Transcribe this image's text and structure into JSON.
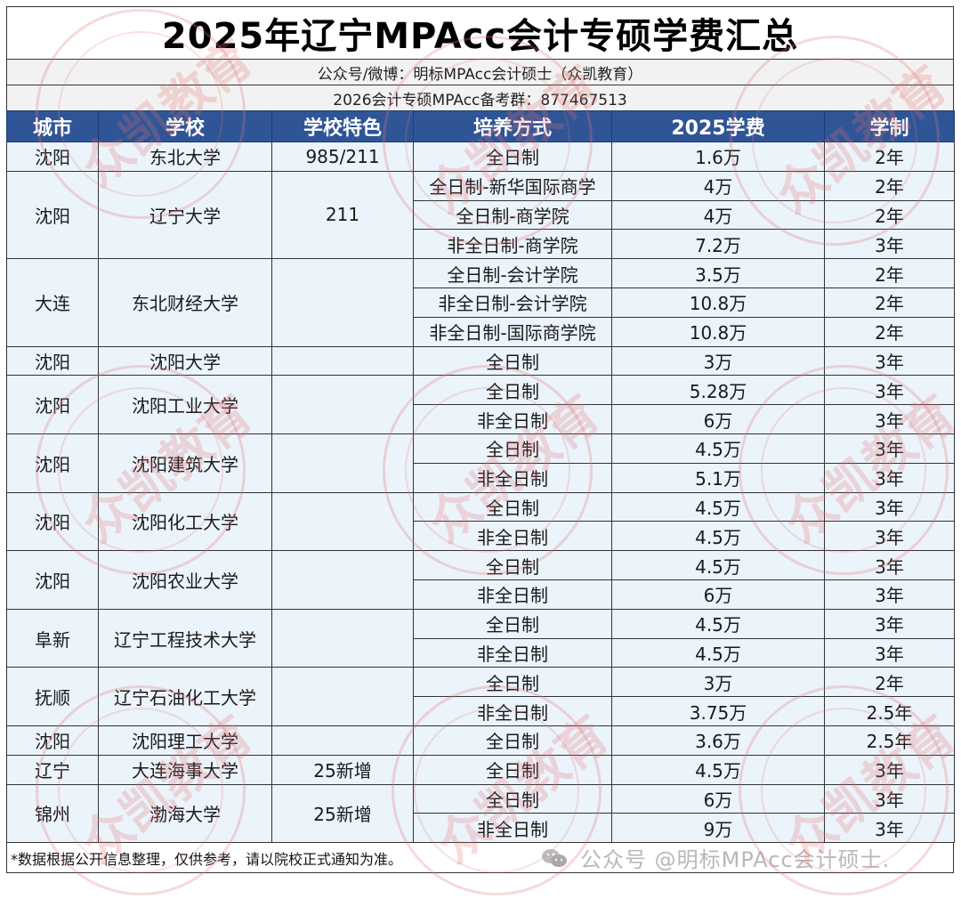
{
  "title": "2025年辽宁MPAcc会计专硕学费汇总",
  "subtitle_1": "公众号/微博：明标MPAcc会计硕士（众凯教育）",
  "subtitle_2": "2026会计专硕MPAcc备考群：877467513",
  "table": {
    "headers": [
      "城市",
      "学校",
      "学校特色",
      "培养方式",
      "2025学费",
      "学制"
    ],
    "schools": [
      {
        "city": "沈阳",
        "school": "东北大学",
        "feature": "985/211",
        "programs": [
          {
            "mode": "全日制",
            "fee": "1.6万",
            "duration": "2年"
          }
        ]
      },
      {
        "city": "沈阳",
        "school": "辽宁大学",
        "feature": "211",
        "programs": [
          {
            "mode": "全日制-新华国际商学",
            "fee": "4万",
            "duration": "2年"
          },
          {
            "mode": "全日制-商学院",
            "fee": "4万",
            "duration": "2年"
          },
          {
            "mode": "非全日制-商学院",
            "fee": "7.2万",
            "duration": "3年"
          }
        ]
      },
      {
        "city": "大连",
        "school": "东北财经大学",
        "feature": "",
        "programs": [
          {
            "mode": "全日制-会计学院",
            "fee": "3.5万",
            "duration": "2年"
          },
          {
            "mode": "非全日制-会计学院",
            "fee": "10.8万",
            "duration": "2年"
          },
          {
            "mode": "非全日制-国际商学院",
            "fee": "10.8万",
            "duration": "2年"
          }
        ]
      },
      {
        "city": "沈阳",
        "school": "沈阳大学",
        "feature": "",
        "programs": [
          {
            "mode": "全日制",
            "fee": "3万",
            "duration": "3年"
          }
        ]
      },
      {
        "city": "沈阳",
        "school": "沈阳工业大学",
        "feature": "",
        "programs": [
          {
            "mode": "全日制",
            "fee": "5.28万",
            "duration": "3年"
          },
          {
            "mode": "非全日制",
            "fee": "6万",
            "duration": "3年"
          }
        ]
      },
      {
        "city": "沈阳",
        "school": "沈阳建筑大学",
        "feature": "",
        "programs": [
          {
            "mode": "全日制",
            "fee": "4.5万",
            "duration": "3年"
          },
          {
            "mode": "非全日制",
            "fee": "5.1万",
            "duration": "3年"
          }
        ]
      },
      {
        "city": "沈阳",
        "school": "沈阳化工大学",
        "feature": "",
        "programs": [
          {
            "mode": "全日制",
            "fee": "4.5万",
            "duration": "3年"
          },
          {
            "mode": "非全日制",
            "fee": "4.5万",
            "duration": "3年"
          }
        ]
      },
      {
        "city": "沈阳",
        "school": "沈阳农业大学",
        "feature": "",
        "programs": [
          {
            "mode": "全日制",
            "fee": "4.5万",
            "duration": "3年"
          },
          {
            "mode": "非全日制",
            "fee": "6万",
            "duration": "3年"
          }
        ]
      },
      {
        "city": "阜新",
        "school": "辽宁工程技术大学",
        "feature": "",
        "programs": [
          {
            "mode": "全日制",
            "fee": "4.5万",
            "duration": "3年"
          },
          {
            "mode": "非全日制",
            "fee": "4.5万",
            "duration": "3年"
          }
        ]
      },
      {
        "city": "抚顺",
        "school": "辽宁石油化工大学",
        "feature": "",
        "programs": [
          {
            "mode": "全日制",
            "fee": "3万",
            "duration": "2年"
          },
          {
            "mode": "非全日制",
            "fee": "3.75万",
            "duration": "2.5年"
          }
        ]
      },
      {
        "city": "沈阳",
        "school": "沈阳理工大学",
        "feature": "",
        "programs": [
          {
            "mode": "全日制",
            "fee": "3.6万",
            "duration": "2.5年"
          }
        ]
      },
      {
        "city": "辽宁",
        "school": "大连海事大学",
        "feature": "25新增",
        "programs": [
          {
            "mode": "全日制",
            "fee": "4.5万",
            "duration": "3年"
          }
        ]
      },
      {
        "city": "锦州",
        "school": "渤海大学",
        "feature": "25新增",
        "programs": [
          {
            "mode": "全日制",
            "fee": "6万",
            "duration": "3年"
          },
          {
            "mode": "非全日制",
            "fee": "9万",
            "duration": "3年"
          }
        ]
      }
    ]
  },
  "note": "*数据根据公开信息整理，仅供参考，请以院校正式通知为准。",
  "platform_watermark": {
    "icon": "wechat-icon",
    "text": "公众号 @明标MPAcc会计硕士."
  },
  "stamp_watermark": {
    "text": "众凯教育",
    "color": "#e27878"
  },
  "colors": {
    "header_bg": "#2f5597",
    "header_text": "#ffffff",
    "cell_bg": "#e8f1fa",
    "subtitle_bg": "#f2f2f2",
    "border": "#333333"
  }
}
